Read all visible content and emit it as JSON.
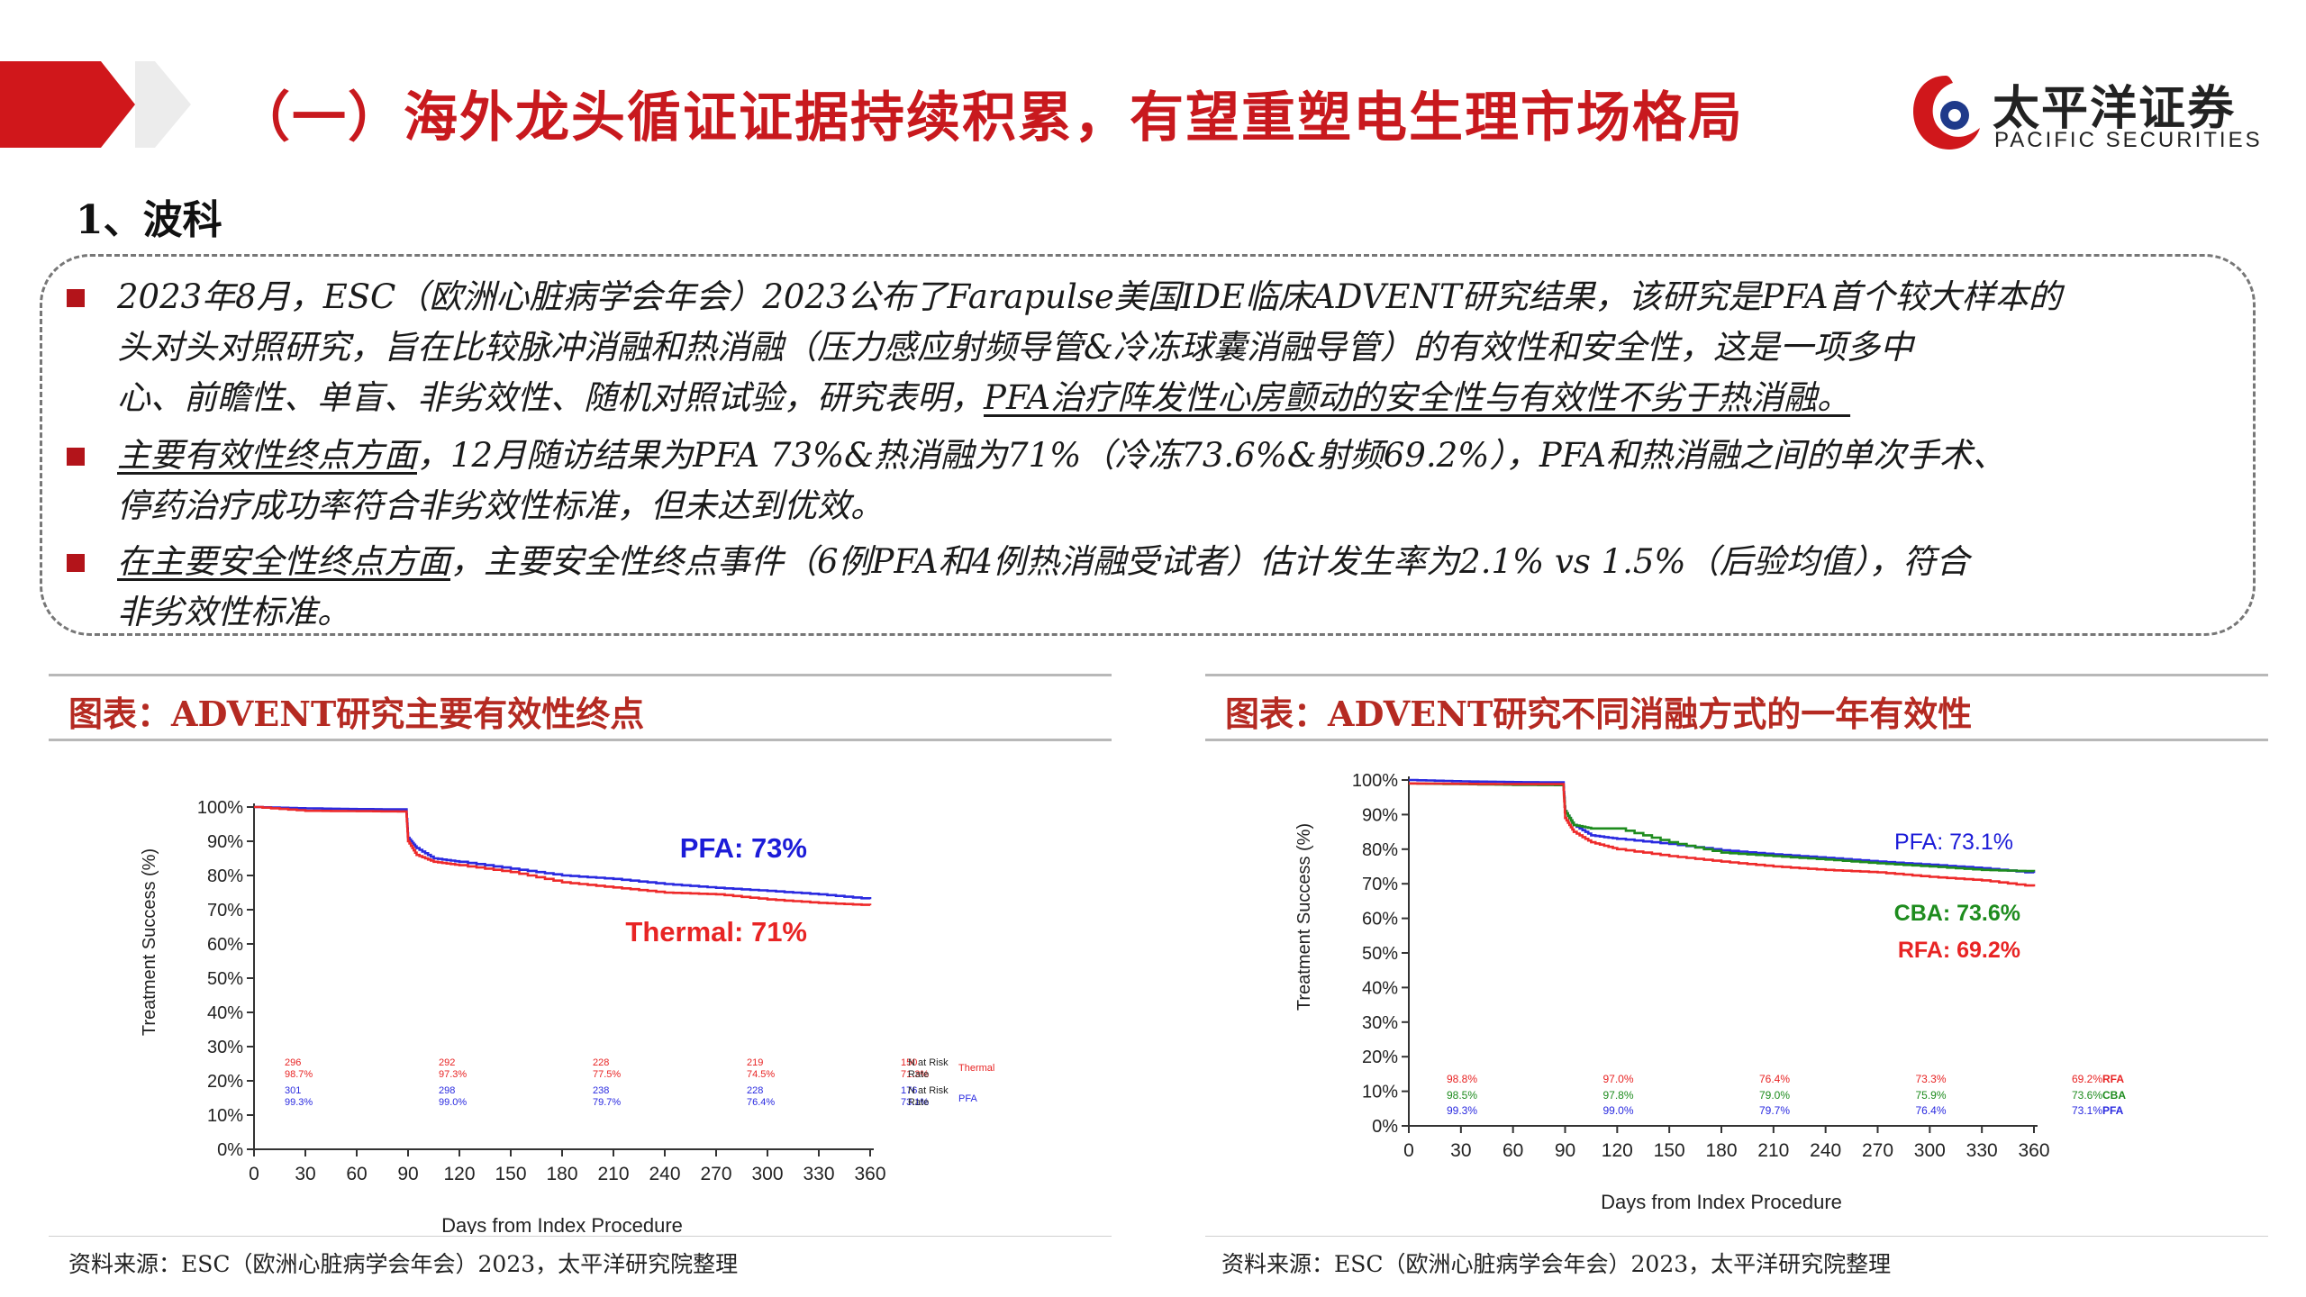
{
  "header": {
    "title": "（一）海外龙头循证证据持续积累，有望重塑电生理市场格局",
    "logo_cn": "太平洋证券",
    "logo_en": "PACIFIC SECURITIES"
  },
  "section_title": "1、波科",
  "bullets": [
    {
      "lines": [
        "2023年8月，ESC（欧洲心脏病学会年会）2023公布了Farapulse美国IDE临床ADVENT研究结果，该研究是PFA首个较大样本的",
        "头对头对照研究，旨在比较脉冲消融和热消融（压力感应射频导管&冷冻球囊消融导管）的有效性和安全性，这是一项多中",
        "心、前瞻性、单盲、非劣效性、随机对照试验，研究表明，"
      ],
      "underlined_tail": "PFA治疗阵发性心房颤动的安全性与有效性不劣于热消融。"
    },
    {
      "lead": "主要有效性终点方面",
      "lines": [
        "，12月随访结果为PFA  73%&热消融为71%（冷冻73.6%&射频69.2%），PFA和热消融之间的单次手术、",
        "停药治疗成功率符合非劣效性标准，但未达到优效。"
      ]
    },
    {
      "lead": "在主要安全性终点方面",
      "lines": [
        "，主要安全性终点事件（6例PFA和4例热消融受试者）估计发生率为2.1% vs  1.5%（后验均值），符合",
        "非劣效性标准。"
      ]
    }
  ],
  "figures": {
    "left_title": "图表：ADVENT研究主要有效性终点",
    "right_title": "图表：ADVENT研究不同消融方式的一年有效性",
    "source": "资料来源：ESC（欧洲心脏病学会年会）2023，太平洋研究院整理"
  },
  "chart_data": [
    {
      "type": "line",
      "ylabel": "Treatment Success (%)",
      "xlabel": "Days from Index Procedure",
      "xlim": [
        0,
        360
      ],
      "ylim": [
        0,
        100
      ],
      "x_ticks": [
        "0",
        "30",
        "60",
        "90",
        "120",
        "150",
        "180",
        "210",
        "240",
        "270",
        "300",
        "330",
        "360"
      ],
      "y_ticks": [
        "0%",
        "10%",
        "20%",
        "30%",
        "40%",
        "50%",
        "60%",
        "70%",
        "80%",
        "90%",
        "100%"
      ],
      "series": [
        {
          "name": "PFA",
          "color": "#2a2ae0",
          "points": [
            [
              0,
              100
            ],
            [
              30,
              99.6
            ],
            [
              60,
              99.4
            ],
            [
              89,
              99.3
            ],
            [
              90,
              91
            ],
            [
              95,
              88
            ],
            [
              105,
              85
            ],
            [
              120,
              84
            ],
            [
              150,
              82
            ],
            [
              180,
              80
            ],
            [
              210,
              79
            ],
            [
              240,
              77.5
            ],
            [
              270,
              76.4
            ],
            [
              300,
              75.5
            ],
            [
              330,
              74.5
            ],
            [
              360,
              73.1
            ]
          ]
        },
        {
          "name": "Thermal",
          "color": "#ee2a2a",
          "points": [
            [
              0,
              100
            ],
            [
              30,
              98.9
            ],
            [
              60,
              98.8
            ],
            [
              89,
              98.7
            ],
            [
              90,
              90
            ],
            [
              95,
              86
            ],
            [
              105,
              84
            ],
            [
              120,
              83
            ],
            [
              150,
              81
            ],
            [
              180,
              78
            ],
            [
              210,
              76.5
            ],
            [
              240,
              75
            ],
            [
              270,
              74.5
            ],
            [
              300,
              73
            ],
            [
              330,
              72
            ],
            [
              360,
              71.3
            ]
          ]
        }
      ],
      "annotations": [
        {
          "text": "PFA: 73%",
          "color": "#1c1cd8"
        },
        {
          "text": "Thermal: 71%",
          "color": "#e82424"
        }
      ],
      "risk_table": {
        "columns_x": [
          0,
          90,
          180,
          270,
          360
        ],
        "rows": [
          {
            "values": [
              "296",
              "292",
              "228",
              "219",
              "150"
            ],
            "label": "N at Risk",
            "color": "#e82424"
          },
          {
            "values": [
              "98.7%",
              "97.3%",
              "77.5%",
              "74.5%",
              "71.3%"
            ],
            "label": "Rate",
            "color": "#e82424"
          },
          {
            "values": [
              "301",
              "298",
              "238",
              "228",
              "176"
            ],
            "label": "N at Risk",
            "color": "#2a2ae0"
          },
          {
            "values": [
              "99.3%",
              "99.0%",
              "79.7%",
              "76.4%",
              "73.1%"
            ],
            "label": "Rate",
            "color": "#2a2ae0"
          }
        ],
        "group_labels": [
          {
            "text": "Thermal",
            "color": "#e82424"
          },
          {
            "text": "PFA",
            "color": "#2a2ae0"
          }
        ]
      }
    },
    {
      "type": "line",
      "ylabel": "Treatment Success (%)",
      "xlabel": "Days from Index Procedure",
      "xlim": [
        0,
        360
      ],
      "ylim": [
        0,
        100
      ],
      "x_ticks": [
        "0",
        "30",
        "60",
        "90",
        "120",
        "150",
        "180",
        "210",
        "240",
        "270",
        "300",
        "330",
        "360"
      ],
      "y_ticks": [
        "0%",
        "10%",
        "20%",
        "30%",
        "40%",
        "50%",
        "60%",
        "70%",
        "80%",
        "90%",
        "100%"
      ],
      "series": [
        {
          "name": "PFA",
          "color": "#2a2ae0",
          "points": [
            [
              0,
              100
            ],
            [
              30,
              99.6
            ],
            [
              60,
              99.4
            ],
            [
              89,
              99.3
            ],
            [
              90,
              91
            ],
            [
              95,
              87
            ],
            [
              105,
              84
            ],
            [
              120,
              83
            ],
            [
              150,
              81.5
            ],
            [
              180,
              79.7
            ],
            [
              210,
              78.5
            ],
            [
              240,
              77.5
            ],
            [
              270,
              76.4
            ],
            [
              300,
              75.5
            ],
            [
              330,
              74.5
            ],
            [
              360,
              73.1
            ]
          ]
        },
        {
          "name": "CBA",
          "color": "#1e8c1e",
          "points": [
            [
              0,
              99
            ],
            [
              30,
              98.8
            ],
            [
              60,
              98.6
            ],
            [
              89,
              98.5
            ],
            [
              90,
              91
            ],
            [
              95,
              87
            ],
            [
              105,
              86
            ],
            [
              120,
              86
            ],
            [
              150,
              82
            ],
            [
              180,
              79
            ],
            [
              210,
              78
            ],
            [
              240,
              77
            ],
            [
              270,
              75.9
            ],
            [
              300,
              75
            ],
            [
              330,
              74
            ],
            [
              360,
              73.6
            ]
          ]
        },
        {
          "name": "RFA",
          "color": "#ee2a2a",
          "points": [
            [
              0,
              99
            ],
            [
              30,
              98.9
            ],
            [
              60,
              98.8
            ],
            [
              89,
              98.8
            ],
            [
              90,
              89
            ],
            [
              95,
              85
            ],
            [
              105,
              82
            ],
            [
              120,
              80
            ],
            [
              150,
              78
            ],
            [
              180,
              76.4
            ],
            [
              210,
              75
            ],
            [
              240,
              74
            ],
            [
              270,
              73.3
            ],
            [
              300,
              72
            ],
            [
              330,
              71
            ],
            [
              360,
              69.2
            ]
          ]
        }
      ],
      "annotations": [
        {
          "text": "PFA: 73.1%",
          "color": "#1c1cd8"
        },
        {
          "text": "CBA: 73.6%",
          "color": "#1e8c1e"
        },
        {
          "text": "RFA: 69.2%",
          "color": "#e82424"
        }
      ],
      "risk_table": {
        "columns_x": [
          0,
          90,
          180,
          270,
          360
        ],
        "rows": [
          {
            "values": [
              "98.8%",
              "97.0%",
              "76.4%",
              "73.3%",
              "69.2%"
            ],
            "label": "RFA",
            "color": "#e82424"
          },
          {
            "values": [
              "98.5%",
              "97.8%",
              "79.0%",
              "75.9%",
              "73.6%"
            ],
            "label": "CBA",
            "color": "#1e8c1e"
          },
          {
            "values": [
              "99.3%",
              "99.0%",
              "79.7%",
              "76.4%",
              "73.1%"
            ],
            "label": "PFA",
            "color": "#2a2ae0"
          }
        ]
      }
    }
  ]
}
